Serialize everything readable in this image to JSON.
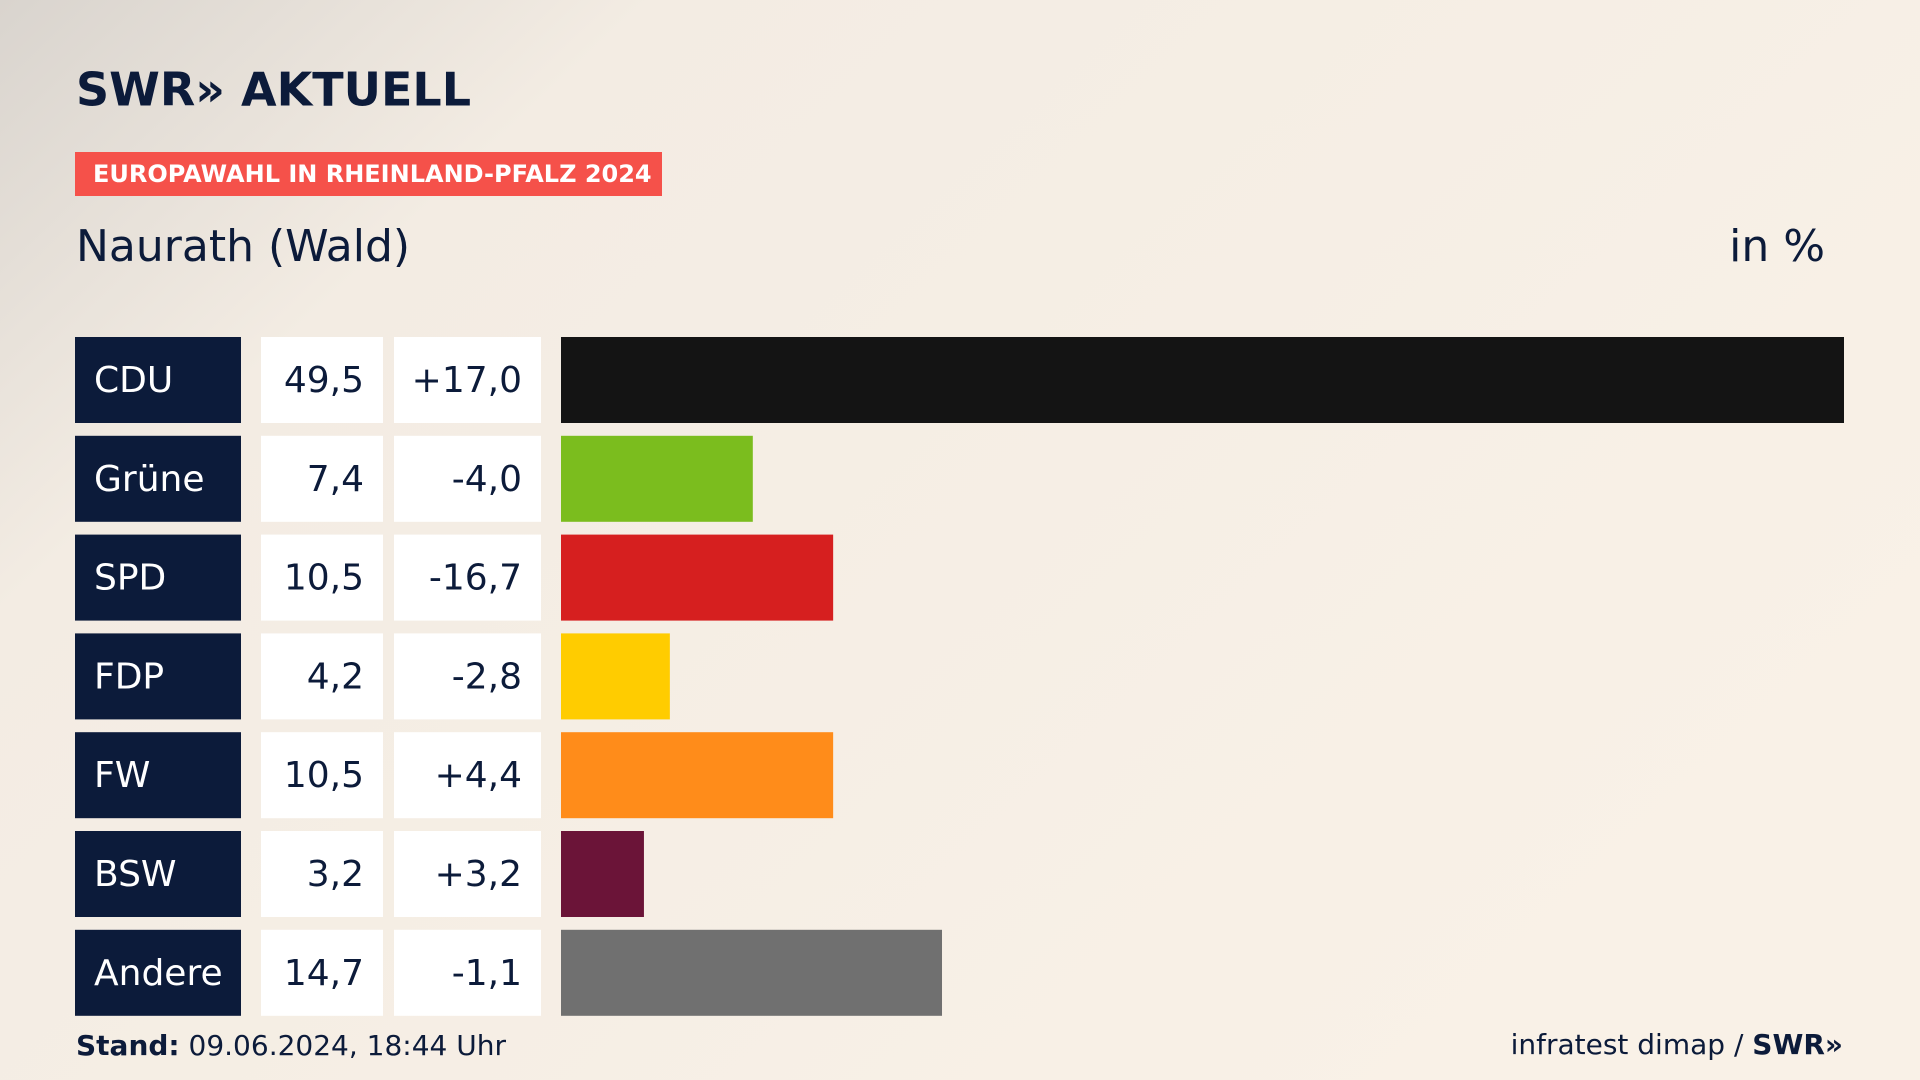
{
  "chart_data": {
    "type": "bar",
    "brand": "SWR» AKTUELL",
    "tag": "EUROPAWAHL IN RHEINLAND-PFALZ 2024",
    "title": "Naurath (Wald)",
    "unit_label": "in %",
    "categories": [
      "CDU",
      "Grüne",
      "SPD",
      "FDP",
      "FW",
      "BSW",
      "Andere"
    ],
    "values": [
      49.5,
      7.4,
      10.5,
      4.2,
      10.5,
      3.2,
      14.7
    ],
    "value_labels": [
      "49,5",
      "7,4",
      "10,5",
      "4,2",
      "10,5",
      "3,2",
      "14,7"
    ],
    "changes": [
      17.0,
      -4.0,
      -16.7,
      -2.8,
      4.4,
      3.2,
      -1.1
    ],
    "change_labels": [
      "+17,0",
      "-4,0",
      "-16,7",
      "-2,8",
      "+4,4",
      "+3,2",
      "-1,1"
    ],
    "colors": [
      "#141414",
      "#7bbd1e",
      "#d61f1f",
      "#ffcc00",
      "#ff8c1a",
      "#6b1438",
      "#707070"
    ],
    "stand_label": "Stand:",
    "stand": "09.06.2024, 18:44 Uhr",
    "source": "infratest dimap /",
    "source_brand": "SWR»"
  }
}
